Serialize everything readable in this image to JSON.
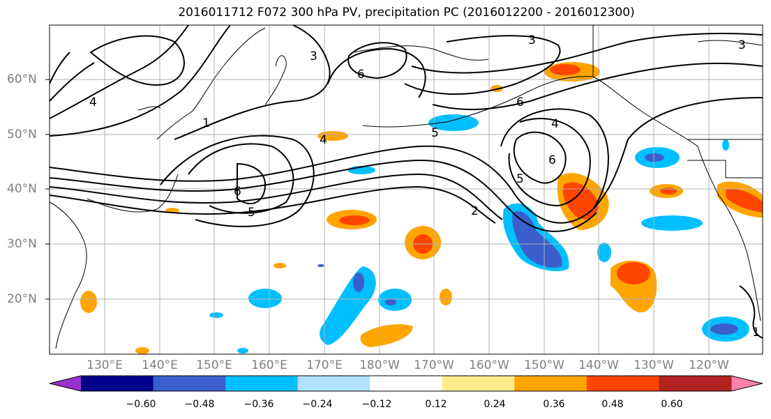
{
  "title": "2016011712 F072 300 hPa PV, precipitation PC (2016012200 - 2016012300)",
  "lat_labels": [
    "60°N",
    "50°N",
    "40°N",
    "30°N",
    "20°N"
  ],
  "lon_labels": [
    "130°E",
    "140°E",
    "150°E",
    "160°E",
    "170°E",
    "180°W",
    "170°W",
    "160°W",
    "150°W",
    "140°W",
    "130°W",
    "120°W"
  ],
  "contour_labels": [
    "1",
    "2",
    "3",
    "4",
    "5",
    "6"
  ],
  "colorbar": {
    "ticks": [
      "−0.60",
      "−0.48",
      "−0.36",
      "−0.24",
      "−0.12",
      "0.12",
      "0.24",
      "0.36",
      "0.48",
      "0.60"
    ],
    "colors": [
      "#9932CC",
      "#00008B",
      "#3A5FCD",
      "#00BFFF",
      "#B0E2FF",
      "#FFFFFF",
      "#FFEC8B",
      "#FFA500",
      "#FF4500",
      "#B22222",
      "#FF82AB"
    ]
  }
}
